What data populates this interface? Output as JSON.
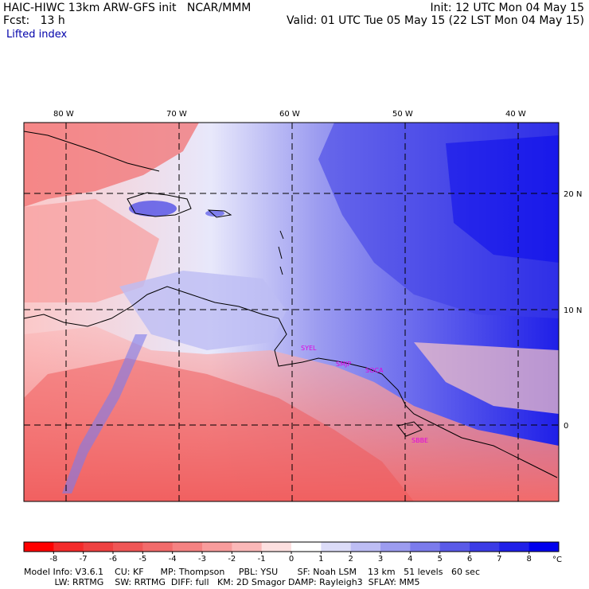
{
  "header": {
    "title": "HAIC-HIWC 13km ARW-GFS init   NCAR/MMM",
    "init": "Init: 12 UTC Mon 04 May 15",
    "fcst_label": "Fcst:   13 h",
    "valid": "Valid: 01 UTC Tue 05 May 15 (22 LST Mon 04 May 15)",
    "field": "Lifted index"
  },
  "map": {
    "lon_labels": [
      "80 W",
      "70 W",
      "60 W",
      "50 W",
      "40 W"
    ],
    "lat_labels": [
      "20 N",
      "10 N",
      "0"
    ],
    "sites": [
      "SYEL",
      "SMJP",
      "SOCA",
      "SBBE"
    ]
  },
  "colorbar": {
    "ticks": [
      "-8",
      "-7",
      "-6",
      "-5",
      "-4",
      "-3",
      "-2",
      "-1",
      "0",
      "1",
      "2",
      "3",
      "4",
      "5",
      "6",
      "7",
      "8"
    ],
    "unit": "°C",
    "colors": [
      "#ff0000",
      "#f42a2a",
      "#ef4141",
      "#f05656",
      "#f26b6b",
      "#f58282",
      "#f89c9c",
      "#fbb8b8",
      "#fde0e0",
      "#ffffff",
      "#dcdcf8",
      "#bdbdf4",
      "#9c9cf0",
      "#7b7bec",
      "#5a5ae8",
      "#3c3ce6",
      "#1f1fe8",
      "#0000ee"
    ]
  },
  "footer": {
    "line1": "Model Info: V3.6.1    CU: KF      MP: Thompson     PBL: YSU       SF: Noah LSM    13 km   51 levels   60 sec",
    "line2": "           LW: RRTMG    SW: RRTMG  DIFF: full   KM: 2D Smagor DAMP: Rayleigh3  SFLAY: MM5"
  },
  "colors": {
    "warm": "#f26b6b",
    "cool": "#3c3ce6",
    "site_label": "#e000e0"
  }
}
